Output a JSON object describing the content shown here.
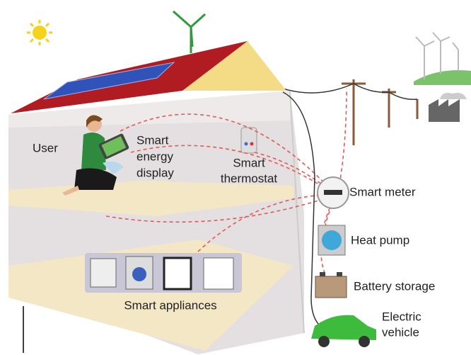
{
  "nodes": [
    {
      "label": [
        "User"
      ]
    },
    {
      "label": [
        "Smart",
        "energy",
        "display"
      ]
    },
    {
      "label": [
        "Smart",
        "thermostat"
      ]
    },
    {
      "label": [
        "Smart meter"
      ]
    },
    {
      "label": [
        "Heat pump"
      ]
    },
    {
      "label": [
        "Battery storage"
      ]
    },
    {
      "label": [
        "Electric",
        "vehicle"
      ]
    },
    {
      "label": [
        "Smart appliances"
      ]
    }
  ]
}
